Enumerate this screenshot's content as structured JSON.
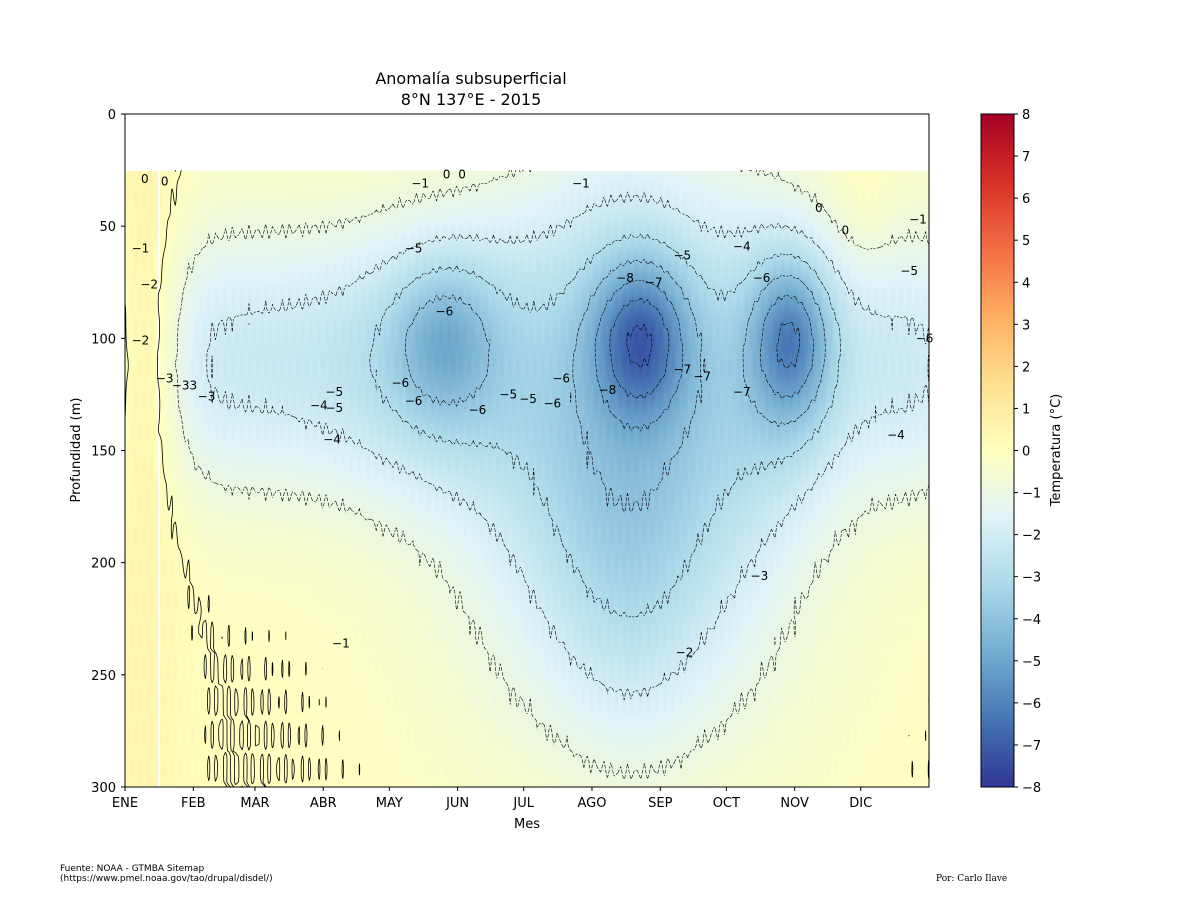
{
  "chart_data": {
    "type": "heatmap",
    "title": [
      "Anomalía subsuperficial",
      "8°N 137°E - 2015"
    ],
    "xlabel": "Mes",
    "ylabel": "Profundidad (m)",
    "x_ticks": [
      "ENE",
      "FEB",
      "MAR",
      "ABR",
      "MAY",
      "JUN",
      "JUL",
      "AGO",
      "SEP",
      "OCT",
      "NOV",
      "DIC"
    ],
    "x_tick_days": [
      0,
      31,
      59,
      90,
      120,
      151,
      181,
      212,
      243,
      273,
      304,
      334
    ],
    "x_range_days": [
      0,
      365
    ],
    "y_ticks": [
      0,
      50,
      100,
      150,
      200,
      250,
      300
    ],
    "ylim": [
      300,
      0
    ],
    "y_data_top": 25,
    "colorbar": {
      "label": "Temperatura (°C)",
      "range": [
        -8,
        8
      ],
      "ticks": [
        8,
        7,
        6,
        5,
        4,
        3,
        2,
        1,
        0,
        -1,
        -2,
        -3,
        -4,
        -5,
        -6,
        -7,
        -8
      ],
      "colormap": "RdYlBu_r",
      "stops": [
        "#313695",
        "#4575b4",
        "#74add1",
        "#abd9e9",
        "#e0f3f8",
        "#ffffbf",
        "#fee090",
        "#fdae61",
        "#f46d43",
        "#d73027",
        "#a50026"
      ]
    },
    "contour_interval": 1,
    "grid": false,
    "contour_labels": [
      {
        "day": 9,
        "depth": 29,
        "text": "0"
      },
      {
        "day": 18,
        "depth": 30,
        "text": "0"
      },
      {
        "day": 7,
        "depth": 60,
        "text": "−1"
      },
      {
        "day": 11,
        "depth": 76,
        "text": "−2"
      },
      {
        "day": 7,
        "depth": 101,
        "text": "−2"
      },
      {
        "day": 18,
        "depth": 118,
        "text": "−3"
      },
      {
        "day": 27,
        "depth": 121,
        "text": "−33"
      },
      {
        "day": 37,
        "depth": 126,
        "text": "−3"
      },
      {
        "day": 88,
        "depth": 130,
        "text": "−4"
      },
      {
        "day": 95,
        "depth": 124,
        "text": "−5"
      },
      {
        "day": 95,
        "depth": 131,
        "text": "−5"
      },
      {
        "day": 94,
        "depth": 145,
        "text": "−4"
      },
      {
        "day": 125,
        "depth": 120,
        "text": "−6"
      },
      {
        "day": 131,
        "depth": 128,
        "text": "−6"
      },
      {
        "day": 145,
        "depth": 88,
        "text": "−6"
      },
      {
        "day": 131,
        "depth": 60,
        "text": "−5"
      },
      {
        "day": 134,
        "depth": 31,
        "text": "−1"
      },
      {
        "day": 146,
        "depth": 27,
        "text": "0"
      },
      {
        "day": 153,
        "depth": 27,
        "text": "0"
      },
      {
        "day": 160,
        "depth": 132,
        "text": "−6"
      },
      {
        "day": 174,
        "depth": 125,
        "text": "−5"
      },
      {
        "day": 183,
        "depth": 127,
        "text": "−5"
      },
      {
        "day": 194,
        "depth": 129,
        "text": "−6"
      },
      {
        "day": 198,
        "depth": 118,
        "text": "−6"
      },
      {
        "day": 207,
        "depth": 31,
        "text": "−1"
      },
      {
        "day": 219,
        "depth": 123,
        "text": "−8"
      },
      {
        "day": 227,
        "depth": 73,
        "text": "−8"
      },
      {
        "day": 240,
        "depth": 75,
        "text": "−7"
      },
      {
        "day": 253,
        "depth": 63,
        "text": "−5"
      },
      {
        "day": 253,
        "depth": 114,
        "text": "−7"
      },
      {
        "day": 262,
        "depth": 117,
        "text": "−7"
      },
      {
        "day": 280,
        "depth": 59,
        "text": "−4"
      },
      {
        "day": 289,
        "depth": 73,
        "text": "−6"
      },
      {
        "day": 280,
        "depth": 124,
        "text": "−7"
      },
      {
        "day": 315,
        "depth": 42,
        "text": "0"
      },
      {
        "day": 327,
        "depth": 52,
        "text": "0"
      },
      {
        "day": 360,
        "depth": 47,
        "text": "−1"
      },
      {
        "day": 356,
        "depth": 70,
        "text": "−5"
      },
      {
        "day": 363,
        "depth": 100,
        "text": "−6"
      },
      {
        "day": 350,
        "depth": 143,
        "text": "−4"
      },
      {
        "day": 288,
        "depth": 206,
        "text": "−3"
      },
      {
        "day": 254,
        "depth": 240,
        "text": "−2"
      },
      {
        "day": 98,
        "depth": 236,
        "text": "−1"
      }
    ]
  },
  "footer": {
    "source_line1": "Fuente: NOAA - GTMBA Sitemap",
    "source_line2": "(https://www.pmel.noaa.gov/tao/drupal/disdel/)",
    "author": "Por: Carlo Ilave"
  }
}
